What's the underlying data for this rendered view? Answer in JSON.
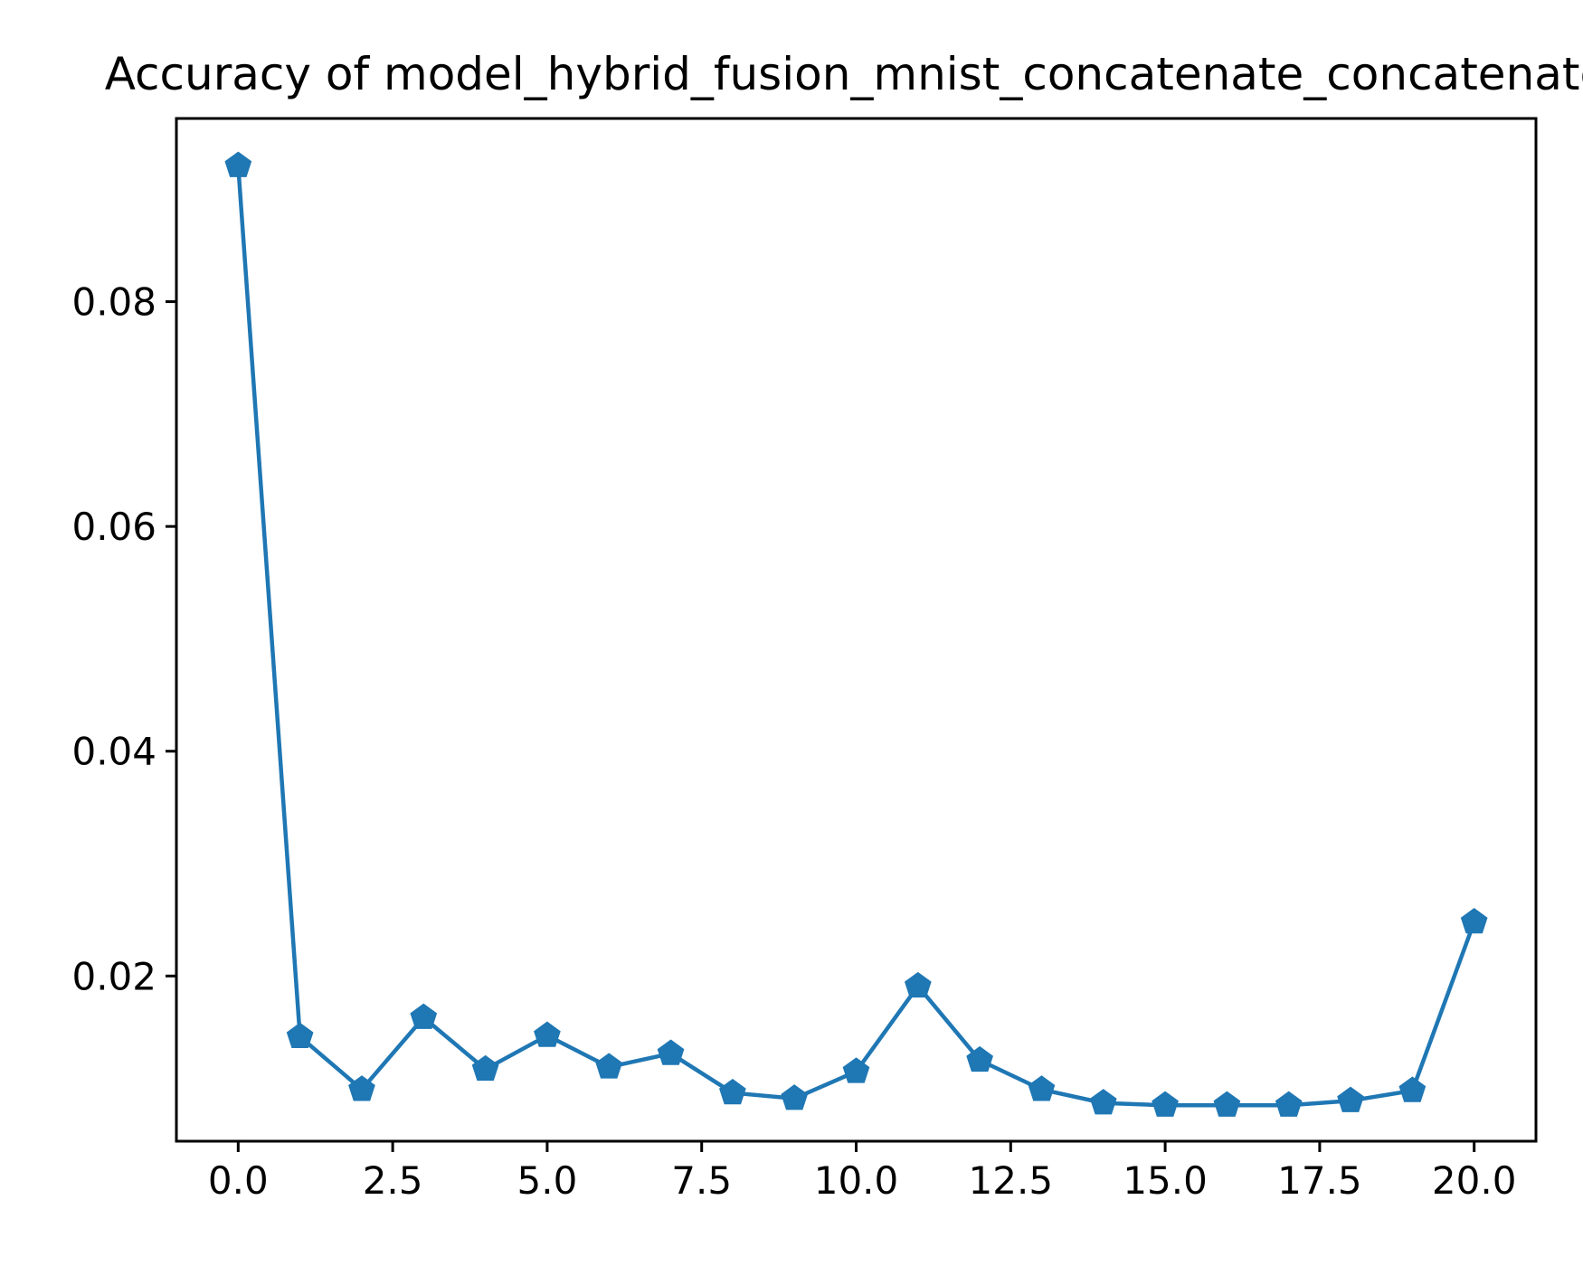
{
  "chart_data": {
    "type": "line",
    "title": "Accuracy of model_hybrid_fusion_mnist_concatenate_concatenate",
    "xlabel": "",
    "ylabel": "",
    "x": [
      0,
      1,
      2,
      3,
      4,
      5,
      6,
      7,
      8,
      9,
      10,
      11,
      12,
      13,
      14,
      15,
      16,
      17,
      18,
      19,
      20
    ],
    "series": [
      {
        "values": [
          0.0921,
          0.0146,
          0.0099,
          0.0163,
          0.0117,
          0.0147,
          0.0119,
          0.0131,
          0.0096,
          0.0091,
          0.0115,
          0.0191,
          0.0125,
          0.0099,
          0.0087,
          0.0085,
          0.0085,
          0.0085,
          0.0089,
          0.0098,
          0.0248
        ],
        "color": "#1f77b4",
        "marker": "pentagon"
      }
    ],
    "xlim": [
      -1,
      21
    ],
    "ylim": [
      0.0053,
      0.0963
    ],
    "xticks": [
      0.0,
      2.5,
      5.0,
      7.5,
      10.0,
      12.5,
      15.0,
      17.5,
      20.0
    ],
    "xtick_labels": [
      "0.0",
      "2.5",
      "5.0",
      "7.5",
      "10.0",
      "12.5",
      "15.0",
      "17.5",
      "20.0"
    ],
    "yticks": [
      0.02,
      0.04,
      0.06,
      0.08
    ],
    "ytick_labels": [
      "0.02",
      "0.04",
      "0.06",
      "0.08"
    ],
    "grid": false,
    "legend": "none"
  }
}
